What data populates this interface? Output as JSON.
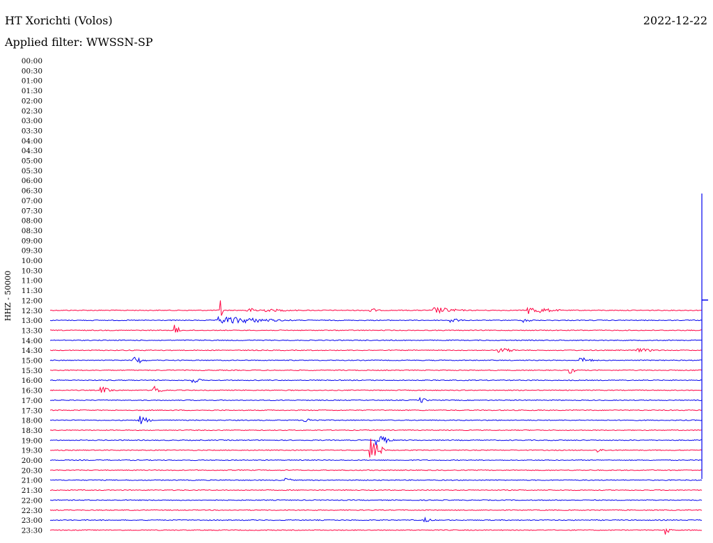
{
  "header": {
    "station": "HT Xorichti (Volos)",
    "date": "2022-12-22",
    "filter": "Applied filter: WWSSN-SP"
  },
  "chart_data": {
    "type": "line",
    "channel_label": "HHZ - 50000",
    "rows": [
      "00:00",
      "00:30",
      "01:00",
      "01:30",
      "02:00",
      "02:30",
      "03:00",
      "03:30",
      "04:00",
      "04:30",
      "05:00",
      "05:30",
      "06:00",
      "06:30",
      "07:00",
      "07:30",
      "08:00",
      "08:30",
      "09:00",
      "09:30",
      "10:00",
      "10:30",
      "11:00",
      "11:30",
      "12:00",
      "12:30",
      "13:00",
      "13:30",
      "14:00",
      "14:30",
      "15:00",
      "15:30",
      "16:00",
      "16:30",
      "17:00",
      "17:30",
      "18:00",
      "18:30",
      "19:00",
      "19:30",
      "20:00",
      "20:30",
      "21:00",
      "21:30",
      "22:00",
      "22:30",
      "23:00",
      "23:30"
    ],
    "colors": {
      "odd": "#ff0040",
      "even": "#0000ee"
    },
    "first_data_row": "12:30",
    "x_range_min": [
      0,
      30
    ],
    "events": [
      {
        "row": "12:30",
        "t": 7.8,
        "amp": 1.1,
        "dur": 0.1
      },
      {
        "row": "12:30",
        "t": 9.0,
        "amp": 0.2,
        "dur": 3.0
      },
      {
        "row": "12:30",
        "t": 14.5,
        "amp": 0.3,
        "dur": 0.6
      },
      {
        "row": "12:30",
        "t": 17.5,
        "amp": 0.35,
        "dur": 1.5
      },
      {
        "row": "12:30",
        "t": 21.8,
        "amp": 0.4,
        "dur": 1.5
      },
      {
        "row": "13:00",
        "t": 7.7,
        "amp": 0.4,
        "dur": 3.5
      },
      {
        "row": "13:00",
        "t": 18.3,
        "amp": 0.3,
        "dur": 0.5
      },
      {
        "row": "13:00",
        "t": 21.6,
        "amp": 0.25,
        "dur": 0.6
      },
      {
        "row": "13:30",
        "t": 5.7,
        "amp": 0.5,
        "dur": 0.3
      },
      {
        "row": "14:30",
        "t": 20.5,
        "amp": 0.25,
        "dur": 1.0
      },
      {
        "row": "14:30",
        "t": 26.7,
        "amp": 0.2,
        "dur": 1.5
      },
      {
        "row": "15:00",
        "t": 3.8,
        "amp": 0.5,
        "dur": 0.6
      },
      {
        "row": "15:00",
        "t": 24.2,
        "amp": 0.3,
        "dur": 0.8
      },
      {
        "row": "15:30",
        "t": 23.7,
        "amp": 0.35,
        "dur": 0.4
      },
      {
        "row": "16:00",
        "t": 6.5,
        "amp": 0.3,
        "dur": 0.5
      },
      {
        "row": "16:30",
        "t": 2.3,
        "amp": 0.35,
        "dur": 0.8
      },
      {
        "row": "16:30",
        "t": 4.7,
        "amp": 0.45,
        "dur": 0.6
      },
      {
        "row": "17:00",
        "t": 16.9,
        "amp": 0.3,
        "dur": 0.4
      },
      {
        "row": "18:00",
        "t": 4.1,
        "amp": 0.45,
        "dur": 0.6
      },
      {
        "row": "18:00",
        "t": 11.5,
        "amp": 0.2,
        "dur": 1.2
      },
      {
        "row": "19:00",
        "t": 14.9,
        "amp": 0.55,
        "dur": 0.8
      },
      {
        "row": "19:30",
        "t": 14.6,
        "amp": 1.25,
        "dur": 0.7
      },
      {
        "row": "19:30",
        "t": 25.0,
        "amp": 0.25,
        "dur": 0.4
      },
      {
        "row": "21:00",
        "t": 10.7,
        "amp": 0.3,
        "dur": 0.4
      },
      {
        "row": "23:00",
        "t": 17.1,
        "amp": 0.25,
        "dur": 0.5
      },
      {
        "row": "23:30",
        "t": 28.1,
        "amp": 0.45,
        "dur": 0.3
      }
    ]
  }
}
